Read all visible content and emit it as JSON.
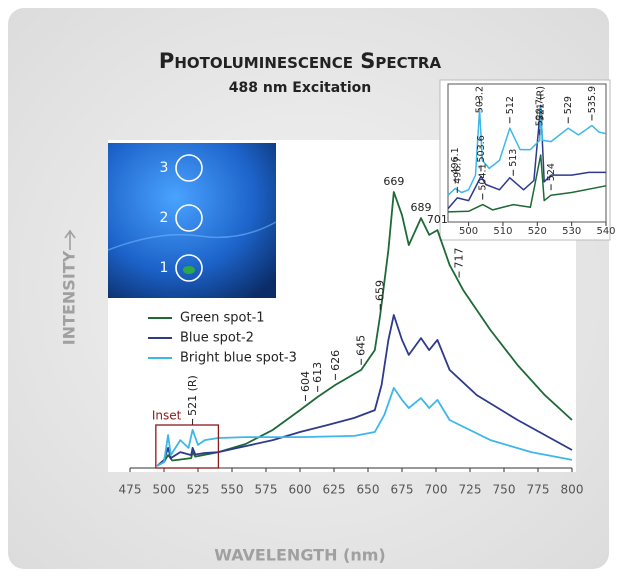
{
  "chart_data": [
    {
      "type": "line",
      "title": "Photoluminescence Spectra",
      "subtitle": "488 nm Excitation",
      "xlabel": "WAVELENGTH (nm)",
      "ylabel": "INTENSITY",
      "xlim": [
        475,
        800
      ],
      "xticks": [
        475,
        500,
        525,
        550,
        575,
        600,
        625,
        650,
        675,
        700,
        725,
        750,
        775,
        800
      ],
      "ylim": [
        0,
        100
      ],
      "legend": "upper left",
      "series": [
        {
          "name": "Green spot-1",
          "color": "#1e6a36",
          "x": [
            495,
            500,
            503,
            506,
            510,
            520,
            521,
            523,
            540,
            560,
            580,
            600,
            613,
            626,
            645,
            655,
            659,
            665,
            669,
            675,
            680,
            689,
            695,
            701,
            710,
            720,
            740,
            760,
            780,
            800
          ],
          "values": [
            0.7,
            2,
            4.3,
            2.5,
            2.7,
            3.3,
            5.3,
            3.8,
            5.3,
            8,
            12.7,
            19.3,
            23.7,
            27.7,
            32.7,
            39.3,
            51,
            72.7,
            92,
            84.3,
            74.3,
            83.3,
            77.7,
            79.3,
            67.7,
            59.3,
            46,
            34.3,
            24.3,
            16
          ],
          "peak_labels": [
            604,
            613,
            626,
            645,
            659,
            669,
            689,
            701,
            717
          ]
        },
        {
          "name": "Blue spot-2",
          "color": "#2e3a8c",
          "x": [
            495,
            500,
            503,
            505,
            512,
            520,
            521,
            523,
            530,
            540,
            560,
            580,
            600,
            620,
            640,
            655,
            660,
            665,
            669,
            675,
            680,
            689,
            695,
            701,
            710,
            730,
            760,
            800
          ],
          "values": [
            0.7,
            2.7,
            6.7,
            3.3,
            5.3,
            4.3,
            6.7,
            4.5,
            5,
            5.3,
            7.3,
            9.3,
            12,
            14.3,
            16.7,
            19.3,
            27.7,
            42.7,
            51,
            42.7,
            37.7,
            43.3,
            39.3,
            42.7,
            32.7,
            24.3,
            16,
            6
          ]
        },
        {
          "name": "Bright blue spot-3",
          "color": "#3db7e8",
          "x": [
            495,
            500,
            503,
            505,
            512,
            518,
            521,
            525,
            530,
            540,
            560,
            600,
            640,
            655,
            662,
            669,
            675,
            680,
            689,
            695,
            701,
            710,
            740,
            770,
            800
          ],
          "values": [
            0.7,
            2,
            11,
            4.3,
            9.3,
            6.7,
            12.7,
            7.7,
            9.3,
            10,
            10.3,
            10.3,
            10.7,
            12,
            17.7,
            26.7,
            22.7,
            20,
            23.3,
            20,
            22.7,
            16,
            9.3,
            5.3,
            2.7
          ],
          "peak_labels": [
            {
              "value": 521,
              "label": "521 (R)"
            }
          ]
        }
      ]
    },
    {
      "type": "line",
      "title": "Inset",
      "xlim": [
        494,
        540
      ],
      "xticks": [
        500,
        510,
        520,
        530,
        540
      ],
      "ylim": [
        0,
        100
      ],
      "series": [
        {
          "name": "Green spot-1",
          "color": "#1e6a36",
          "x": [
            494,
            500,
            504.1,
            507,
            513,
            518,
            521,
            522,
            524,
            530,
            540
          ],
          "values": [
            7.5,
            8,
            13,
            9,
            13,
            11,
            50,
            16,
            20,
            22,
            27
          ],
          "peak_labels": [
            504.1,
            524
          ]
        },
        {
          "name": "Blue spot-2",
          "color": "#2e3a8c",
          "x": [
            494,
            496.7,
            500,
            503.6,
            505,
            509,
            512,
            516,
            519,
            521,
            522,
            524,
            530,
            535,
            540
          ],
          "values": [
            10,
            18,
            16,
            34,
            28,
            24,
            33,
            24,
            31,
            87,
            30,
            35,
            35,
            37,
            37
          ],
          "peak_labels": [
            496.7,
            503.6,
            513,
            {
              "value": 521,
              "label": "521 (R)"
            }
          ]
        },
        {
          "name": "Bright blue spot-3",
          "color": "#3db7e8",
          "x": [
            494,
            496.1,
            498,
            500,
            502,
            503.2,
            504,
            506,
            509,
            512,
            515,
            518,
            520.7,
            521,
            521.5,
            524,
            529,
            532,
            535.9,
            538,
            540
          ],
          "values": [
            20,
            25,
            22,
            24,
            35,
            84,
            46,
            40,
            46,
            70,
            54,
            54,
            61,
            85,
            61,
            60,
            70,
            65,
            72,
            67,
            66
          ],
          "peak_labels": [
            496.1,
            503.2,
            512,
            520.7,
            529,
            535.9
          ]
        }
      ]
    }
  ],
  "photo": {
    "labels": [
      "3",
      "2",
      "1"
    ]
  }
}
